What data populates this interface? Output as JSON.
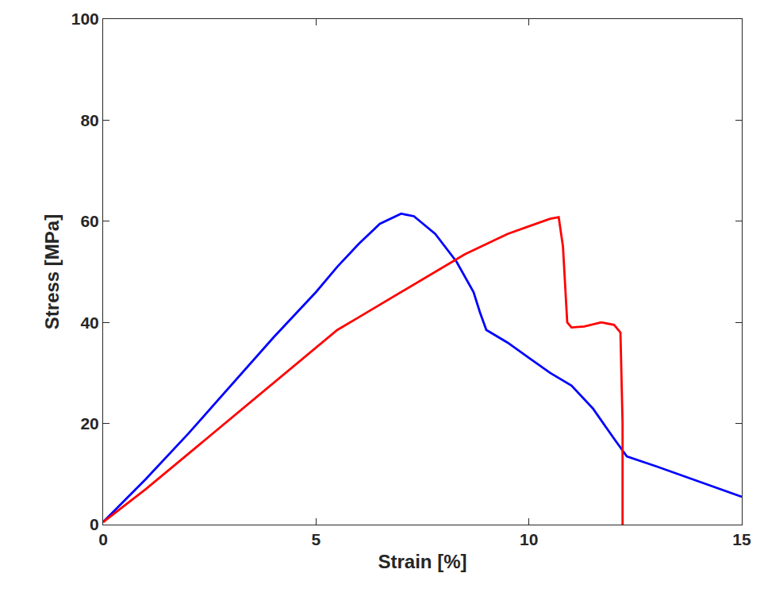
{
  "chart_data": {
    "type": "line",
    "x_label": "Strain [%]",
    "y_label": "Stress [MPa]",
    "xlim": [
      0,
      15
    ],
    "xticks": [
      0,
      5,
      10,
      15
    ],
    "ylim": [
      0,
      100
    ],
    "yticks": [
      0,
      20,
      40,
      60,
      80,
      100
    ],
    "grid": false,
    "series": [
      {
        "color": "#0000ff",
        "x": [
          0,
          1,
          2,
          3,
          4,
          5,
          5.5,
          6,
          6.5,
          7,
          7.3,
          7.8,
          8.3,
          8.7,
          8.85,
          9,
          9.5,
          10,
          10.5,
          11,
          11.5,
          12,
          12.3,
          13,
          14,
          15
        ],
        "values": [
          0.5,
          9,
          18,
          27.5,
          37,
          46,
          51,
          55.5,
          59.5,
          61.5,
          61,
          57.5,
          52,
          46,
          42,
          38.5,
          36,
          33,
          30,
          27.5,
          23,
          17,
          13.5,
          11.5,
          8.5,
          5.5
        ]
      },
      {
        "color": "#ff0000",
        "x": [
          0,
          1,
          2,
          3,
          4,
          5,
          5.5,
          6,
          6.5,
          7,
          7.5,
          8,
          8.5,
          9,
          9.5,
          10,
          10.5,
          10.7,
          10.8,
          10.9,
          11,
          11.3,
          11.7,
          12,
          12.15,
          12.2,
          12.2
        ],
        "values": [
          0.5,
          7,
          14,
          21,
          28,
          35,
          38.5,
          41,
          43.5,
          46,
          48.5,
          51,
          53.5,
          55.5,
          57.5,
          59,
          60.5,
          60.8,
          55,
          40,
          39,
          39.2,
          40,
          39.5,
          38,
          20,
          0
        ]
      }
    ]
  }
}
